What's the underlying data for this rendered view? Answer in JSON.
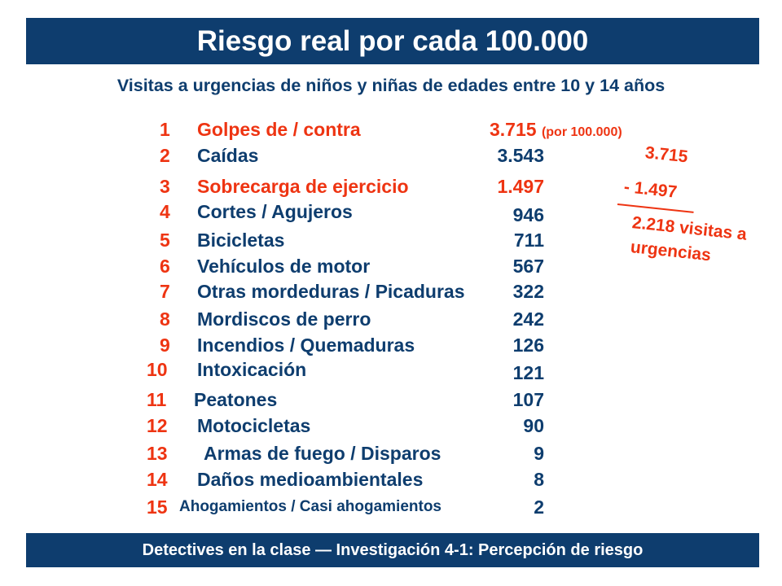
{
  "title": "Riesgo real por cada 100.000",
  "subtitle": "Visitas a urgencias de niños y niñas de edades entre 10 y 14 años",
  "rows": [
    {
      "num": "1",
      "label": "Golpes de / contra",
      "value": "3.715",
      "note": "(por 100.000)"
    },
    {
      "num": "2",
      "label": "Caídas",
      "value": "3.543"
    },
    {
      "num": "3",
      "label": "Sobrecarga de ejercicio",
      "value": "1.497"
    },
    {
      "num": "4",
      "label": "Cortes / Agujeros",
      "value": "946"
    },
    {
      "num": "5",
      "label": "Bicicletas",
      "value": "711"
    },
    {
      "num": "6",
      "label": "Vehículos de motor",
      "value": "567"
    },
    {
      "num": "7",
      "label": "Otras mordeduras / Picaduras",
      "value": "322"
    },
    {
      "num": "8",
      "label": "Mordiscos de perro",
      "value": "242"
    },
    {
      "num": "9",
      "label": "Incendios / Quemaduras",
      "value": "126"
    },
    {
      "num": "10",
      "label": "Intoxicación",
      "value": "121"
    },
    {
      "num": "11",
      "label": "Peatones",
      "value": "107"
    },
    {
      "num": "12",
      "label": "Motocicletas",
      "value": "90"
    },
    {
      "num": "13",
      "label": "Armas de fuego / Disparos",
      "value": "9"
    },
    {
      "num": "14",
      "label": "Daños medioambientales",
      "value": "8"
    },
    {
      "num": "15",
      "label": "Ahogamientos  / Casi ahogamientos",
      "value": "2"
    }
  ],
  "calculation": {
    "minuend": "3.715",
    "subtrahend": "- 1.497",
    "result_line1": "2.218 visitas a",
    "result_line2": "urgencias"
  },
  "footer": "Detectives en la clase — Investigación 4-1:  Percepción de riesgo",
  "colors": {
    "navy": "#0e3d6e",
    "accent": "#ee3412"
  }
}
